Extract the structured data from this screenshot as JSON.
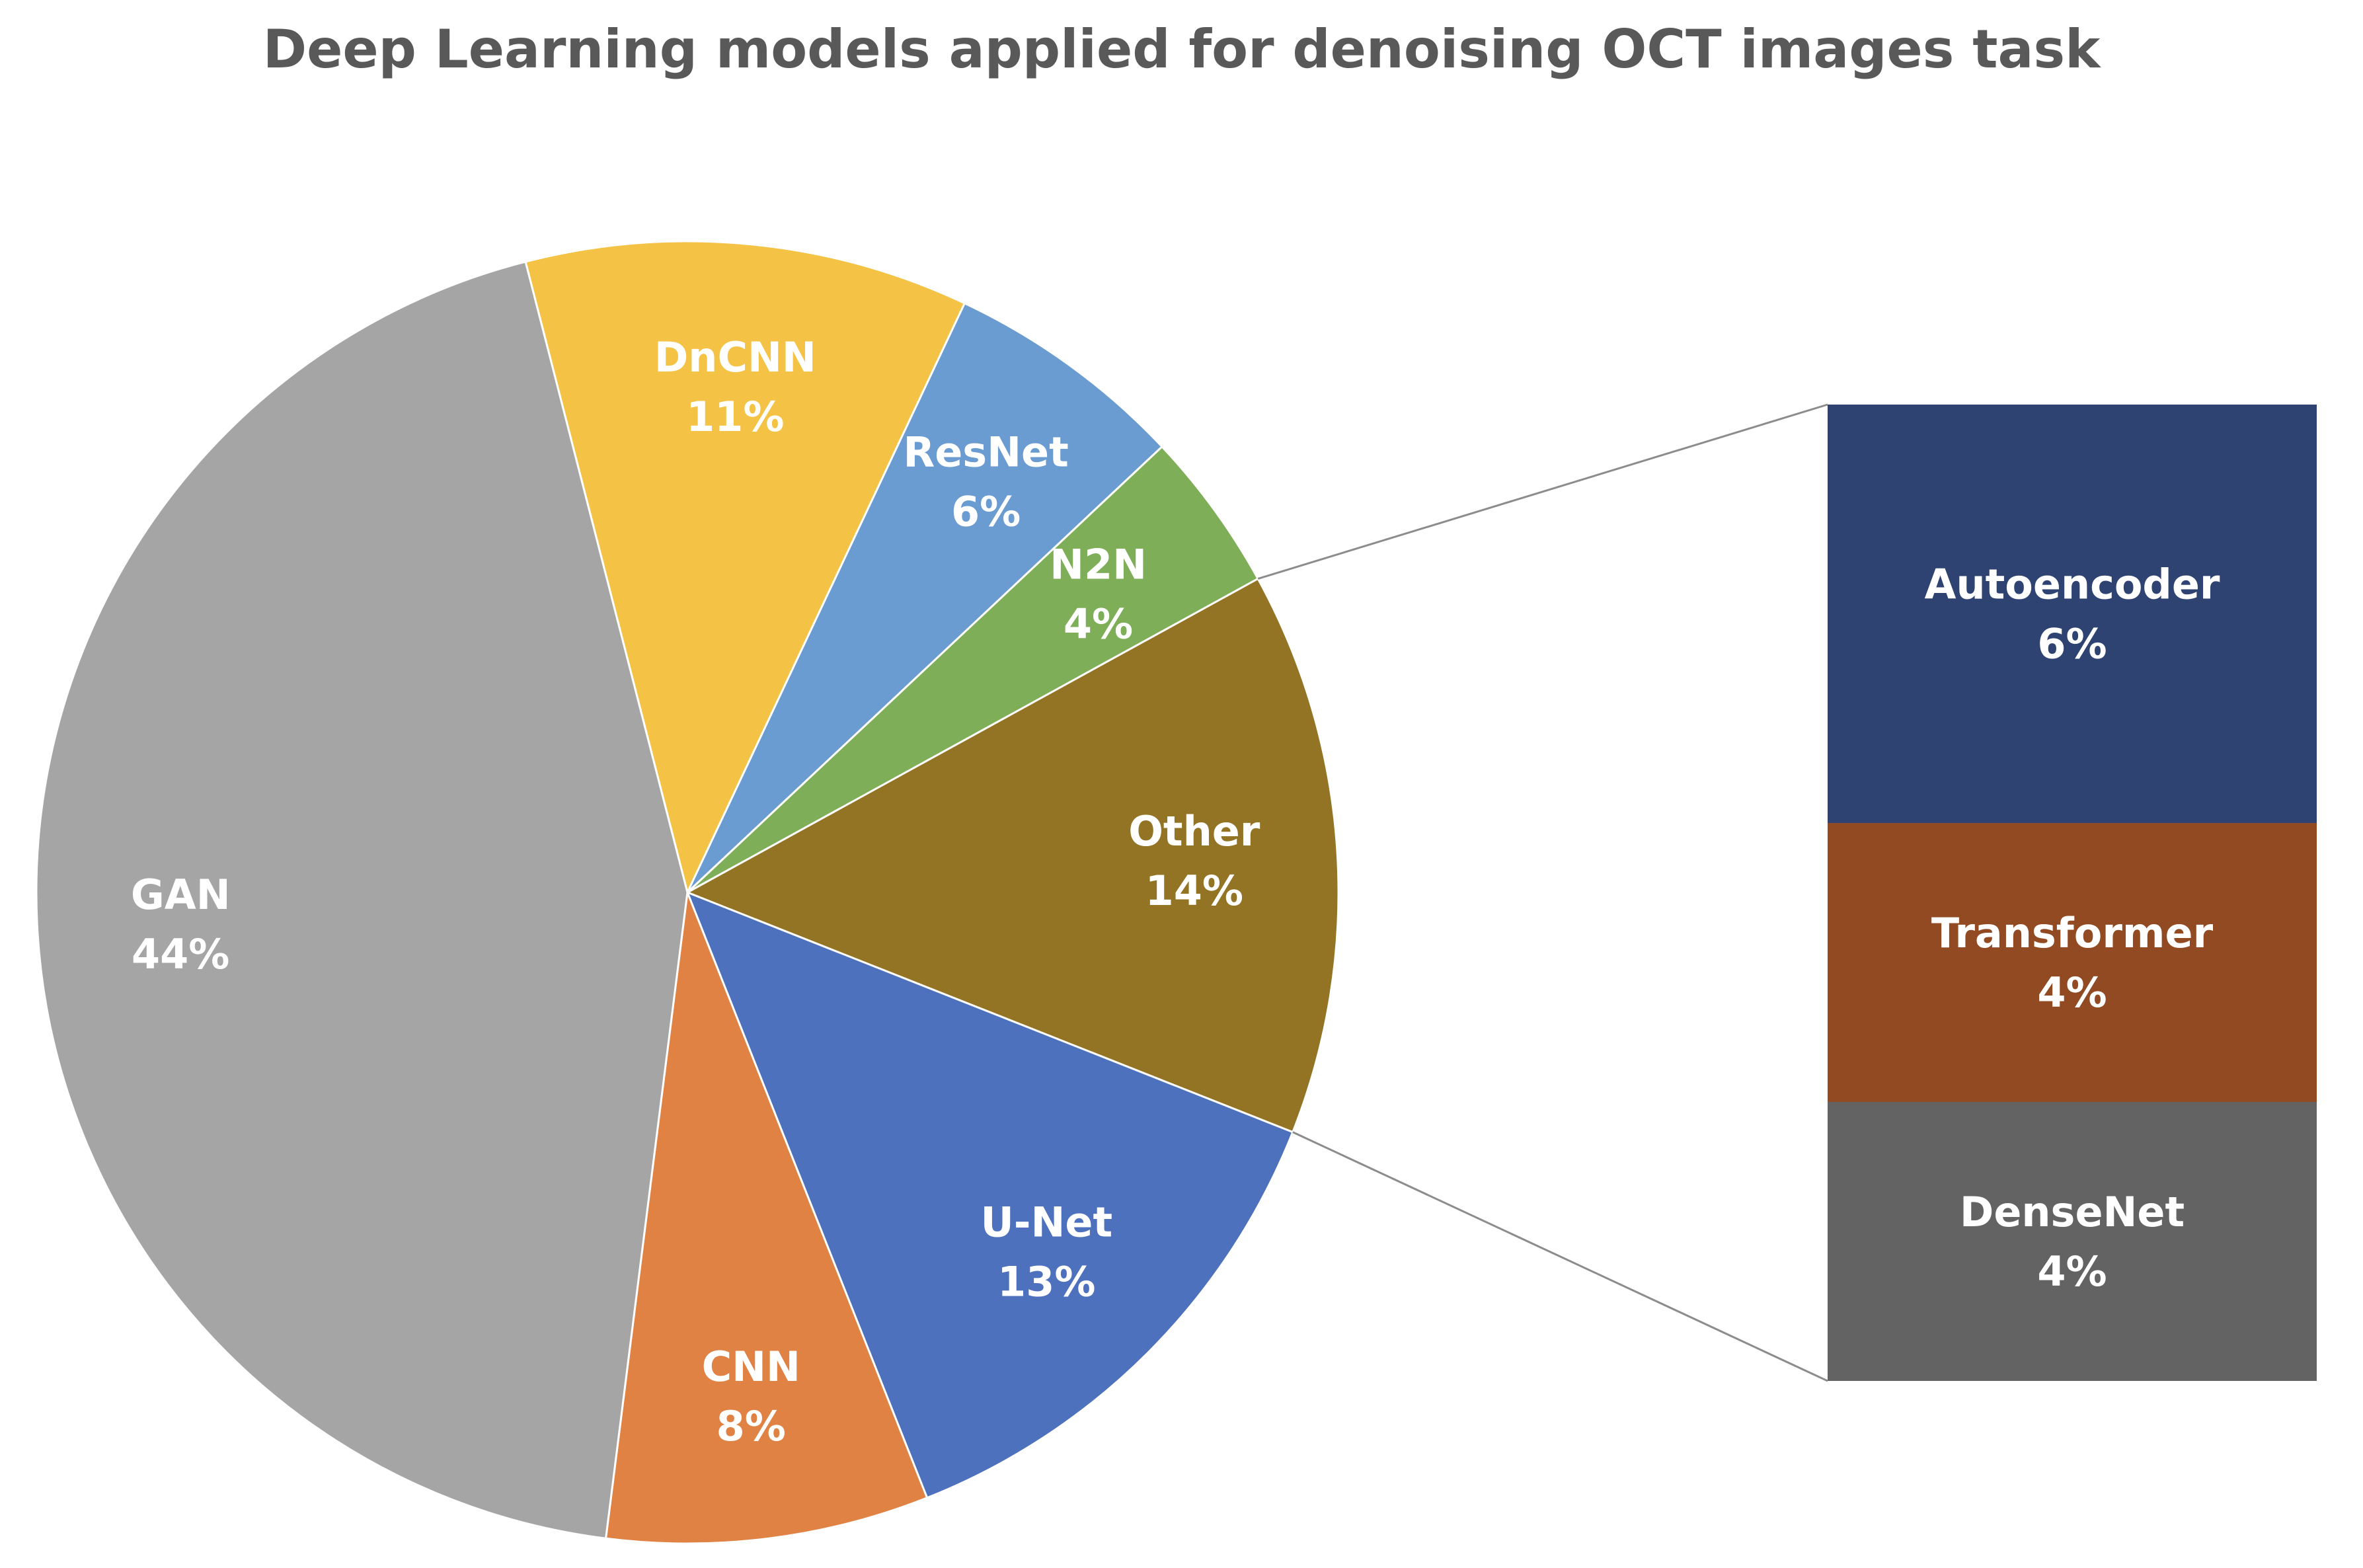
{
  "chart_data": {
    "type": "pie",
    "title": "Deep Learning models applied for denoising OCT images task",
    "slices": [
      {
        "label": "DnCNN",
        "value": 11,
        "value_label": "11%",
        "color": "#F4C244"
      },
      {
        "label": "ResNet",
        "value": 6,
        "value_label": "6%",
        "color": "#6A9BD1"
      },
      {
        "label": "N2N",
        "value": 4,
        "value_label": "4%",
        "color": "#7FAE58"
      },
      {
        "label": "Other",
        "value": 14,
        "value_label": "14%",
        "color": "#937424"
      },
      {
        "label": "U-Net",
        "value": 13,
        "value_label": "13%",
        "color": "#4E71BE"
      },
      {
        "label": "CNN",
        "value": 8,
        "value_label": "8%",
        "color": "#DF8244"
      },
      {
        "label": "GAN",
        "value": 44,
        "value_label": "44%",
        "color": "#A5A5A5"
      }
    ],
    "breakout": {
      "source_slice": "Other",
      "segments": [
        {
          "label": "Autoencoder",
          "value": 6,
          "value_label": "6%",
          "color": "#2E4372"
        },
        {
          "label": "Transformer",
          "value": 4,
          "value_label": "4%",
          "color": "#914A21"
        },
        {
          "label": "DenseNet",
          "value": 4,
          "value_label": "4%",
          "color": "#636363"
        }
      ]
    }
  }
}
